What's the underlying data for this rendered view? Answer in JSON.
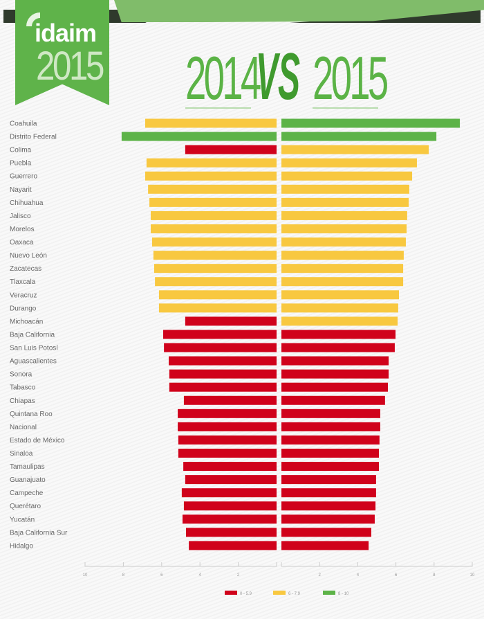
{
  "header": {
    "logo_word": "idaim",
    "logo_year": "2015",
    "title_left": "2014",
    "title_vs": "VS",
    "title_right": "2015"
  },
  "colors": {
    "red": "#d0021b",
    "yellow": "#f8c840",
    "green": "#5db348"
  },
  "chart_data": {
    "type": "bar",
    "orientation": "horizontal-butterfly",
    "title": "2014 VS 2015",
    "categories": [
      "Coahuila",
      "Distrito Federal",
      "Colima",
      "Puebla",
      "Guerrero",
      "Nayarit",
      "Chihuahua",
      "Jalisco",
      "Morelos",
      "Oaxaca",
      "Nuevo León",
      "Zacatecas",
      "Tlaxcala",
      "Veracruz",
      "Durango",
      "Michoacán",
      "Baja California",
      "San Luis Potosí",
      "Aguascalientes",
      "Sonora",
      "Tabasco",
      "Chiapas",
      "Quintana Roo",
      "Nacional",
      "Estado de México",
      "Sinaloa",
      "Tamaulipas",
      "Guanajuato",
      "Campeche",
      "Querétaro",
      "Yucatán",
      "Baja California Sur",
      "Hidalgo"
    ],
    "series": [
      {
        "name": "2014",
        "side": "left",
        "values": [
          6.86,
          8.09,
          4.77,
          6.79,
          6.86,
          6.71,
          6.64,
          6.57,
          6.57,
          6.5,
          6.43,
          6.39,
          6.35,
          6.14,
          6.14,
          4.77,
          5.92,
          5.88,
          5.63,
          5.6,
          5.6,
          4.84,
          5.16,
          5.16,
          5.13,
          5.13,
          4.87,
          4.77,
          4.95,
          4.84,
          4.91,
          4.73,
          4.58
        ]
      },
      {
        "name": "2015",
        "side": "right",
        "values": [
          9.35,
          8.12,
          7.72,
          7.1,
          6.85,
          6.7,
          6.67,
          6.59,
          6.56,
          6.52,
          6.41,
          6.38,
          6.38,
          6.16,
          6.12,
          6.09,
          5.98,
          5.94,
          5.62,
          5.62,
          5.58,
          5.43,
          5.18,
          5.18,
          5.14,
          5.11,
          5.11,
          4.96,
          4.96,
          4.93,
          4.89,
          4.71,
          4.57
        ]
      }
    ],
    "xlim": [
      0,
      10
    ],
    "left_ticks": [
      "10",
      "8",
      "6",
      "4",
      "2"
    ],
    "right_ticks": [
      "2",
      "4",
      "6",
      "8",
      "10"
    ],
    "legend": [
      {
        "label": "0 - 5.9",
        "color": "#d0021b",
        "min": 0,
        "max": 5.9
      },
      {
        "label": "6 - 7.9",
        "color": "#f8c840",
        "min": 6,
        "max": 7.9
      },
      {
        "label": "8 - 10",
        "color": "#5db348",
        "min": 8,
        "max": 10
      }
    ],
    "legend_position": "bottom-center",
    "grid": false
  }
}
